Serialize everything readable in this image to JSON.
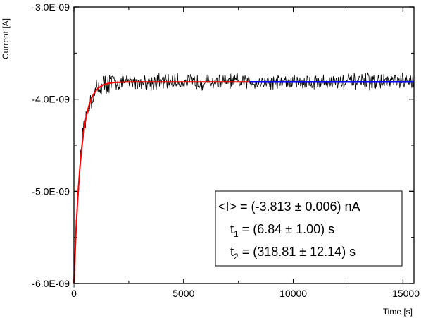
{
  "chart_data": {
    "type": "line",
    "xlabel": "Time [s]",
    "ylabel": "Current [A]",
    "xlim": [
      0,
      15500
    ],
    "ylim": [
      -6e-09,
      -3e-09
    ],
    "x_ticks": [
      {
        "value": 0,
        "label": "0"
      },
      {
        "value": 5000,
        "label": "5000"
      },
      {
        "value": 10000,
        "label": "10000"
      },
      {
        "value": 15000,
        "label": "15000"
      }
    ],
    "y_ticks": [
      {
        "value": -3e-09,
        "label": "-3.0E-09"
      },
      {
        "value": -4e-09,
        "label": "-4.0E-09"
      },
      {
        "value": -5e-09,
        "label": "-5.0E-09"
      },
      {
        "value": -6e-09,
        "label": "-6.0E-09"
      }
    ],
    "grid": false,
    "series": [
      {
        "color": "#000000",
        "style": "noisy measurement",
        "x_range": [
          0,
          15500
        ],
        "y_start": -6e-09,
        "y_plateau": -3.813e-09,
        "noise_amplitude": 7e-11
      },
      {
        "color": "#ff0000",
        "style": "exponential fit",
        "x_range": [
          0,
          8000
        ],
        "y_start": -6e-09,
        "y_plateau": -3.813e-09
      },
      {
        "color": "#0000ff",
        "style": "constant level",
        "x_range": [
          8000,
          15500
        ],
        "y_value": -3.813e-09
      }
    ],
    "annotation": {
      "line1": "<I> = (-3.813 ± 0.006) nA",
      "line2_prefix": "t",
      "line2_sub": "1",
      "line2_rest": " = (6.84 ± 1.00) s",
      "line3_prefix": "t",
      "line3_sub": "2",
      "line3_rest": " = (318.81 ± 12.14) s"
    }
  }
}
